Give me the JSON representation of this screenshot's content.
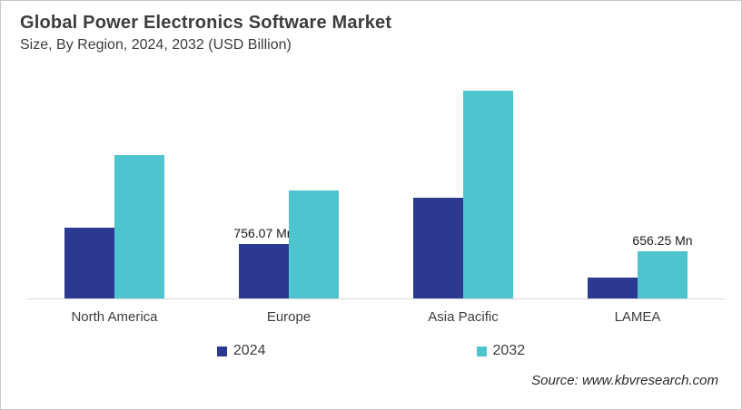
{
  "header": {
    "title": "Global Power Electronics Software Market",
    "subtitle": "Size, By Region, 2024, 2032 (USD Billion)"
  },
  "chart_data": {
    "type": "bar",
    "categories": [
      "North America",
      "Europe",
      "Asia Pacific",
      "LAMEA"
    ],
    "series": [
      {
        "name": "2024",
        "color": "#2B3990",
        "values_mn": [
          990,
          756.07,
          1400,
          290
        ],
        "data_labels": [
          "",
          "756.07 Mn",
          "",
          ""
        ]
      },
      {
        "name": "2032",
        "color": "#4EC4CE",
        "values_mn": [
          2000,
          1500,
          2890,
          656.25
        ],
        "data_labels": [
          "",
          "",
          "",
          "656.25 Mn"
        ]
      }
    ],
    "value_unit": "Mn",
    "ylim_mn": [
      0,
      3080
    ],
    "grid": "off",
    "legend_position": "bottom",
    "axis_line_color": "#d9d9d9"
  },
  "footer": {
    "source": "Source: www.kbvresearch.com"
  }
}
